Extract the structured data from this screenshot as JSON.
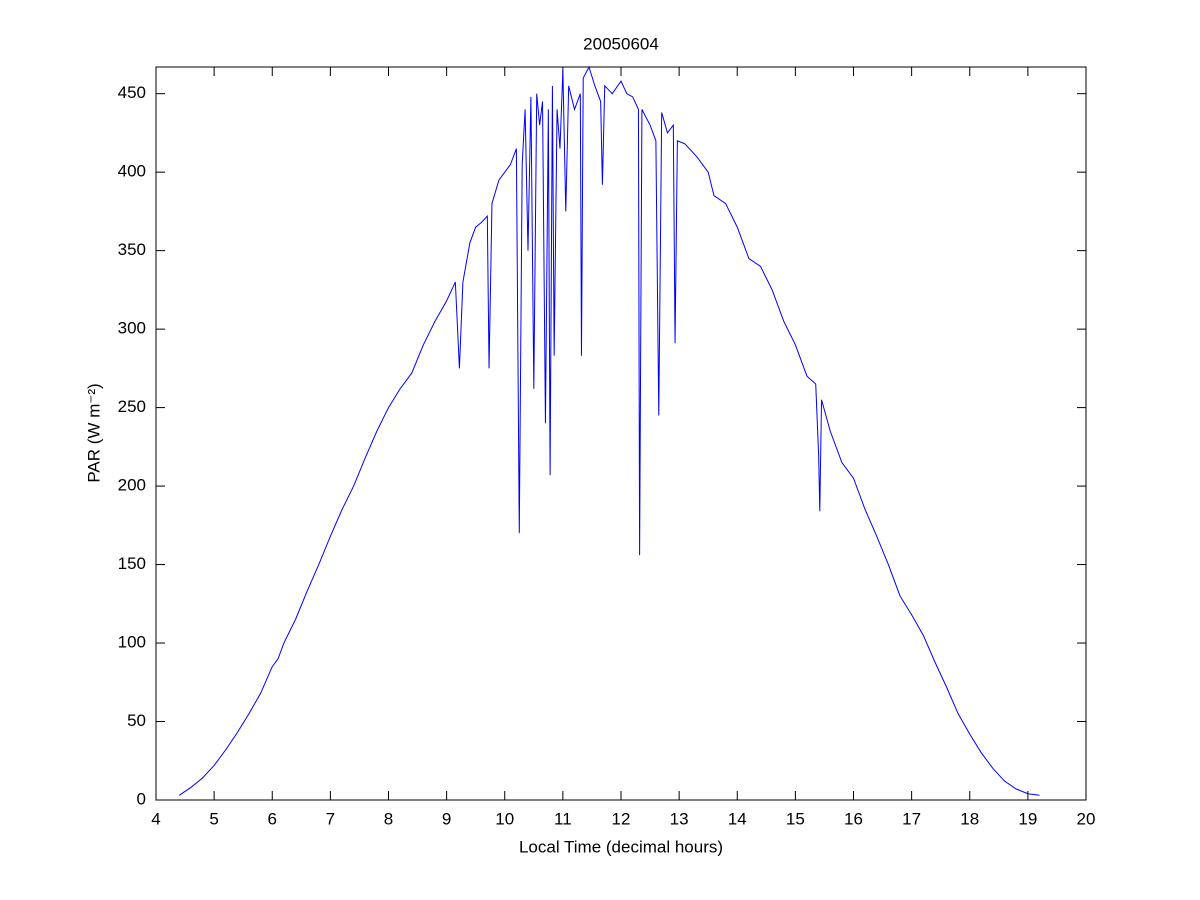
{
  "chart_data": {
    "type": "line",
    "title": "20050604",
    "xlabel": "Local Time (decimal hours)",
    "ylabel": "PAR (W m⁻²)",
    "x": [
      4.4,
      4.6,
      4.8,
      5.0,
      5.2,
      5.4,
      5.6,
      5.8,
      6.0,
      6.1,
      6.2,
      6.4,
      6.6,
      6.8,
      7.0,
      7.2,
      7.4,
      7.6,
      7.8,
      8.0,
      8.2,
      8.4,
      8.6,
      8.8,
      9.0,
      9.15,
      9.22,
      9.28,
      9.4,
      9.5,
      9.6,
      9.7,
      9.73,
      9.78,
      9.9,
      10.0,
      10.1,
      10.2,
      10.25,
      10.3,
      10.35,
      10.4,
      10.45,
      10.5,
      10.55,
      10.6,
      10.65,
      10.7,
      10.75,
      10.78,
      10.82,
      10.85,
      10.9,
      10.95,
      11.0,
      11.05,
      11.1,
      11.2,
      11.3,
      11.32,
      11.35,
      11.45,
      11.55,
      11.65,
      11.68,
      11.72,
      11.85,
      12.0,
      12.1,
      12.2,
      12.3,
      12.32,
      12.36,
      12.5,
      12.6,
      12.65,
      12.7,
      12.8,
      12.9,
      12.93,
      12.97,
      13.1,
      13.3,
      13.5,
      13.6,
      13.8,
      14.0,
      14.2,
      14.4,
      14.6,
      14.8,
      15.0,
      15.2,
      15.35,
      15.4,
      15.42,
      15.45,
      15.6,
      15.8,
      16.0,
      16.2,
      16.4,
      16.6,
      16.8,
      17.0,
      17.2,
      17.4,
      17.6,
      17.8,
      18.0,
      18.2,
      18.4,
      18.6,
      18.8,
      19.0,
      19.2
    ],
    "series": [
      {
        "name": "PAR",
        "color": "#0000ff",
        "values": [
          3,
          8,
          14,
          22,
          32,
          43,
          55,
          68,
          85,
          90,
          100,
          115,
          133,
          150,
          168,
          185,
          200,
          218,
          235,
          250,
          262,
          272,
          290,
          305,
          318,
          330,
          275,
          330,
          355,
          365,
          368,
          372,
          275,
          380,
          395,
          400,
          405,
          415,
          170,
          405,
          440,
          350,
          448,
          262,
          450,
          430,
          445,
          240,
          440,
          207,
          455,
          283,
          440,
          415,
          465,
          375,
          455,
          440,
          450,
          283,
          460,
          467,
          455,
          445,
          392,
          455,
          450,
          458,
          450,
          448,
          440,
          156,
          440,
          430,
          420,
          245,
          438,
          425,
          430,
          291,
          420,
          418,
          410,
          400,
          385,
          380,
          365,
          345,
          340,
          325,
          305,
          290,
          270,
          265,
          220,
          184,
          255,
          235,
          215,
          205,
          185,
          168,
          150,
          130,
          118,
          105,
          88,
          72,
          55,
          42,
          30,
          20,
          12,
          7,
          4,
          3
        ]
      }
    ],
    "xlim": [
      4,
      20
    ],
    "xticks": [
      4,
      5,
      6,
      7,
      8,
      9,
      10,
      11,
      12,
      13,
      14,
      15,
      16,
      17,
      18,
      19,
      20
    ],
    "ylim": [
      0,
      467
    ],
    "yticks": [
      0,
      50,
      100,
      150,
      200,
      250,
      300,
      350,
      400,
      450
    ],
    "grid": false
  }
}
